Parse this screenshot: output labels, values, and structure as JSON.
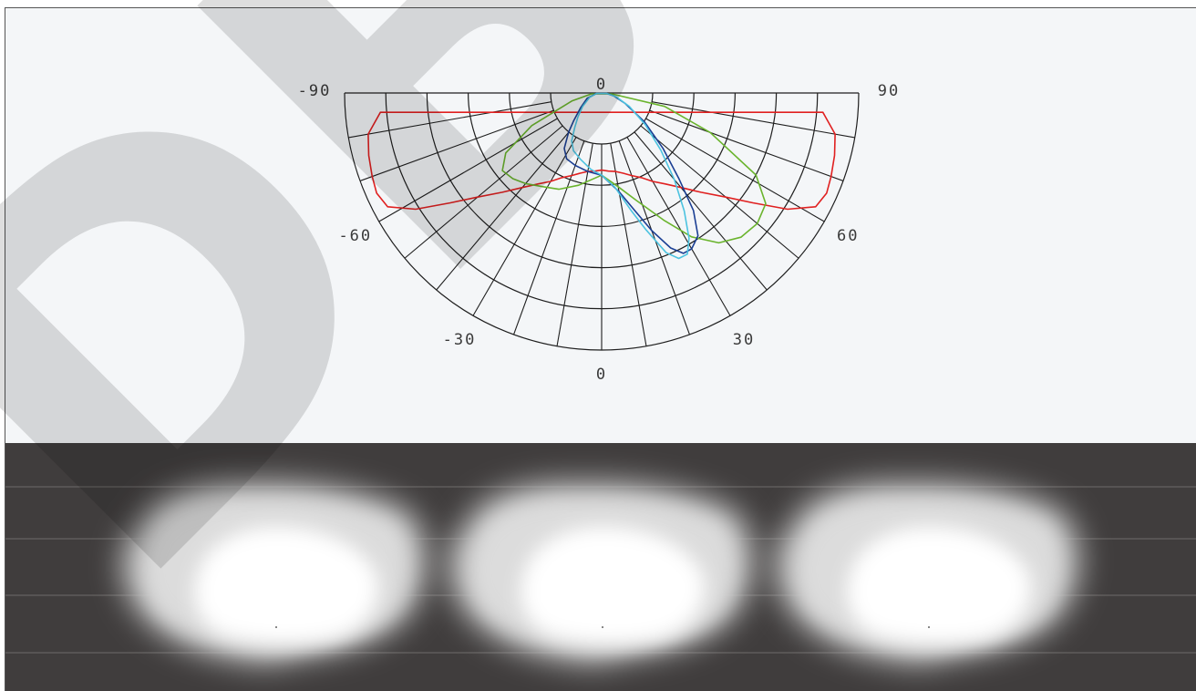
{
  "watermark": {
    "text": "DBF",
    "color": "#000000",
    "opacity": 0.13
  },
  "chart_data": {
    "type": "polar",
    "title": "",
    "angle_ticks": [
      {
        "label": "-90",
        "angle": -90
      },
      {
        "label": "0",
        "angle": 0,
        "position": "top"
      },
      {
        "label": "90",
        "angle": 90
      },
      {
        "label": "-60",
        "angle": -60
      },
      {
        "label": "60",
        "angle": 60
      },
      {
        "label": "-30",
        "angle": -30
      },
      {
        "label": "30",
        "angle": 30
      },
      {
        "label": "0",
        "angle": 0,
        "position": "bottom"
      }
    ],
    "angle_range": [
      -90,
      90
    ],
    "radial_rings": [
      0.2,
      0.4,
      0.6,
      0.8,
      1.0
    ],
    "grid": true,
    "series": [
      {
        "color": "#e02020",
        "points": [
          [
            -85,
            0.864
          ],
          [
            -80,
            0.922
          ],
          [
            -75,
            0.938
          ],
          [
            -70,
            0.95
          ],
          [
            -66,
            0.958
          ],
          [
            -62,
            0.943
          ],
          [
            -58,
            0.853
          ],
          [
            -54,
            0.727
          ],
          [
            -50,
            0.63
          ],
          [
            -45,
            0.546
          ],
          [
            -40,
            0.48
          ],
          [
            -35,
            0.432
          ],
          [
            -30,
            0.397
          ],
          [
            -25,
            0.363
          ],
          [
            -20,
            0.342
          ],
          [
            -15,
            0.323
          ],
          [
            -10,
            0.31
          ],
          [
            -5,
            0.305
          ],
          [
            0,
            0.3
          ],
          [
            5,
            0.305
          ],
          [
            10,
            0.31
          ],
          [
            15,
            0.323
          ],
          [
            20,
            0.342
          ],
          [
            25,
            0.363
          ],
          [
            30,
            0.397
          ],
          [
            35,
            0.432
          ],
          [
            40,
            0.48
          ],
          [
            45,
            0.546
          ],
          [
            50,
            0.63
          ],
          [
            54,
            0.727
          ],
          [
            58,
            0.853
          ],
          [
            62,
            0.943
          ],
          [
            66,
            0.958
          ],
          [
            70,
            0.95
          ],
          [
            75,
            0.938
          ],
          [
            80,
            0.922
          ],
          [
            85,
            0.864
          ]
        ]
      },
      {
        "color": "#6ab42d",
        "points": [
          [
            -85,
            0.04
          ],
          [
            -75,
            0.12
          ],
          [
            -65,
            0.3
          ],
          [
            -58,
            0.44
          ],
          [
            -52,
            0.49
          ],
          [
            -46,
            0.48
          ],
          [
            -40,
            0.46
          ],
          [
            -32,
            0.43
          ],
          [
            -24,
            0.41
          ],
          [
            -14,
            0.37
          ],
          [
            0,
            0.32
          ],
          [
            10,
            0.37
          ],
          [
            18,
            0.44
          ],
          [
            26,
            0.55
          ],
          [
            32,
            0.66
          ],
          [
            38,
            0.74
          ],
          [
            44,
            0.78
          ],
          [
            50,
            0.79
          ],
          [
            56,
            0.77
          ],
          [
            62,
            0.68
          ],
          [
            70,
            0.45
          ],
          [
            78,
            0.25
          ],
          [
            85,
            0.04
          ]
        ]
      },
      {
        "color": "#1b3f94",
        "points": [
          [
            -85,
            0.02
          ],
          [
            -70,
            0.06
          ],
          [
            -55,
            0.1
          ],
          [
            -45,
            0.155
          ],
          [
            -40,
            0.2
          ],
          [
            -34,
            0.26
          ],
          [
            -28,
            0.29
          ],
          [
            -20,
            0.3
          ],
          [
            -10,
            0.31
          ],
          [
            0,
            0.32
          ],
          [
            10,
            0.39
          ],
          [
            16,
            0.48
          ],
          [
            20,
            0.57
          ],
          [
            24,
            0.66
          ],
          [
            27,
            0.7
          ],
          [
            30,
            0.7
          ],
          [
            34,
            0.67
          ],
          [
            38,
            0.58
          ],
          [
            42,
            0.45
          ],
          [
            48,
            0.32
          ],
          [
            56,
            0.2
          ],
          [
            66,
            0.1
          ],
          [
            76,
            0.05
          ],
          [
            85,
            0.02
          ]
        ]
      },
      {
        "color": "#4cc3e0",
        "points": [
          [
            -85,
            0.02
          ],
          [
            -70,
            0.05
          ],
          [
            -55,
            0.09
          ],
          [
            -45,
            0.13
          ],
          [
            -38,
            0.17
          ],
          [
            -32,
            0.22
          ],
          [
            -26,
            0.25
          ],
          [
            -18,
            0.27
          ],
          [
            -8,
            0.3
          ],
          [
            0,
            0.32
          ],
          [
            8,
            0.37
          ],
          [
            14,
            0.47
          ],
          [
            18,
            0.56
          ],
          [
            22,
            0.67
          ],
          [
            25,
            0.71
          ],
          [
            28,
            0.71
          ],
          [
            31,
            0.66
          ],
          [
            35,
            0.56
          ],
          [
            40,
            0.44
          ],
          [
            46,
            0.32
          ],
          [
            54,
            0.21
          ],
          [
            64,
            0.12
          ],
          [
            75,
            0.06
          ],
          [
            85,
            0.02
          ]
        ]
      }
    ]
  },
  "floor_view": {
    "background": "#403d3d",
    "spot_count": 3
  }
}
